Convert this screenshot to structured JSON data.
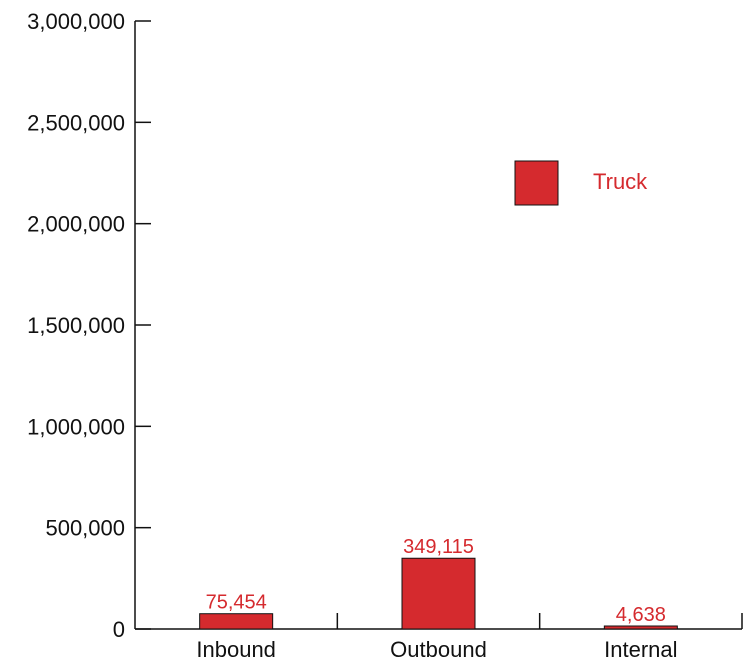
{
  "chart_data": {
    "type": "bar",
    "title": "",
    "xlabel": "",
    "ylabel": "",
    "categories": [
      "Inbound",
      "Outbound",
      "Internal"
    ],
    "series": [
      {
        "name": "Truck",
        "color": "#d52a2e",
        "values": [
          75454,
          349115,
          4638
        ],
        "labels": [
          "75,454",
          "349,115",
          "4,638"
        ]
      }
    ],
    "ylim": [
      0,
      3000000
    ],
    "yticks": [
      0,
      500000,
      1000000,
      1500000,
      2000000,
      2500000,
      3000000
    ],
    "ytick_labels": [
      "0",
      "500,000",
      "1,000,000",
      "1,500,000",
      "2,000,000",
      "2,500,000",
      "3,000,000"
    ],
    "grid": false,
    "legend": {
      "placement": "top-right",
      "label": "Truck"
    }
  }
}
